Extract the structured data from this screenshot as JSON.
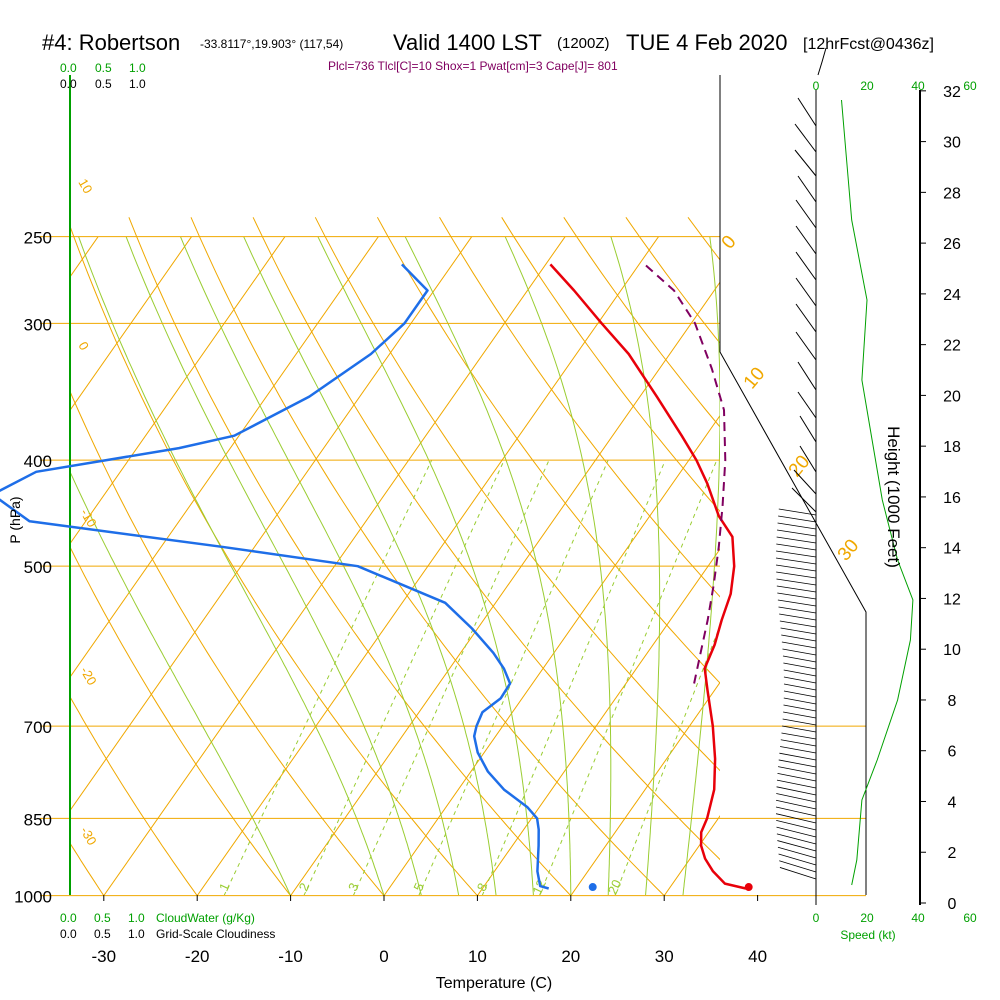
{
  "header": {
    "station": "#4: Robertson",
    "location": "-33.8117°,19.903° (117,54)",
    "valid": "Valid 1400 LST",
    "utc": "(1200Z)",
    "date": "TUE 4 Feb 2020",
    "forecast": "[12hrFcst@0436z]"
  },
  "indices": "Plcl=736 Tlcl[C]=10 Shox=1 Pwat[cm]=3 Cape[J]= 801",
  "colors": {
    "isobar": "#f0a800",
    "isotherm": "#f0a800",
    "dry_adiabat": "#f0a800",
    "moist_adiabat": "#9acd32",
    "mixing_ratio": "#9acd32",
    "temperature": "#e8000a",
    "dewpoint": "#1e6ee8",
    "parcel": "#800060",
    "cloud": "#00a000",
    "speed": "#00a000",
    "indices_text": "#800060"
  },
  "scales": {
    "cloud_top_green": [
      "0.0",
      "0.5",
      "1.0"
    ],
    "cloud_top_black": [
      "0.0",
      "0.5",
      "1.0"
    ],
    "cloud_bottom_green": [
      "0.0",
      "0.5",
      "1.0"
    ],
    "cloud_bottom_black": [
      "0.0",
      "0.5",
      "1.0"
    ],
    "cloudwater_label": "CloudWater (g/Kg)",
    "cloudiness_label": "Grid-Scale Cloudiness",
    "speed_ticks": [
      "0",
      "20",
      "40",
      "60"
    ],
    "speed_label": "Speed (kt)"
  },
  "adiabat_labels": {
    "dry_left": [
      "10",
      "0",
      "-10",
      "-20",
      "-30"
    ],
    "dry_right": [
      "0",
      "10",
      "20",
      "30"
    ],
    "mixing_ratio": [
      "1",
      "2",
      "3",
      "5",
      "8",
      "12",
      "20"
    ]
  },
  "chart_data": {
    "type": "skew-t",
    "xlabel": "Temperature (C)",
    "ylabel": "P (hPa)",
    "y2label": "Height (1000 Feet)",
    "pressure_ticks": [
      250,
      300,
      400,
      500,
      700,
      850,
      1000
    ],
    "temperature_ticks": [
      -30,
      -20,
      -10,
      0,
      10,
      20,
      30,
      40
    ],
    "height_ticks": [
      0,
      2,
      4,
      6,
      8,
      10,
      12,
      14,
      16,
      18,
      20,
      22,
      24,
      26,
      28,
      30,
      32
    ],
    "xlim": [
      -35,
      45
    ],
    "ylim": [
      1000,
      250
    ],
    "series": [
      {
        "key": "temperature",
        "points": [
          [
            985,
            38.2
          ],
          [
            975,
            35.6
          ],
          [
            950,
            33.4
          ],
          [
            925,
            31.6
          ],
          [
            900,
            30.2
          ],
          [
            875,
            29.2
          ],
          [
            850,
            28.8
          ],
          [
            800,
            27.4
          ],
          [
            750,
            25.2
          ],
          [
            700,
            22.5
          ],
          [
            650,
            19.3
          ],
          [
            620,
            17.3
          ],
          [
            590,
            16.6
          ],
          [
            560,
            15.5
          ],
          [
            530,
            14.5
          ],
          [
            500,
            12.8
          ],
          [
            470,
            10.4
          ],
          [
            450,
            7.4
          ],
          [
            420,
            3.7
          ],
          [
            400,
            0.8
          ],
          [
            380,
            -2.6
          ],
          [
            350,
            -8.2
          ],
          [
            320,
            -14.4
          ],
          [
            300,
            -19.6
          ],
          [
            280,
            -25.0
          ],
          [
            265,
            -29.5
          ]
        ]
      },
      {
        "key": "dewpoint",
        "points": [
          [
            985,
            17.1
          ],
          [
            980,
            16.0
          ],
          [
            950,
            14.6
          ],
          [
            900,
            12.8
          ],
          [
            870,
            11.6
          ],
          [
            850,
            10.6
          ],
          [
            830,
            8.7
          ],
          [
            800,
            4.9
          ],
          [
            770,
            1.8
          ],
          [
            740,
            -0.7
          ],
          [
            715,
            -2.3
          ],
          [
            700,
            -2.8
          ],
          [
            680,
            -3.2
          ],
          [
            660,
            -2.3
          ],
          [
            640,
            -2.4
          ],
          [
            620,
            -4.2
          ],
          [
            600,
            -6.5
          ],
          [
            570,
            -10.6
          ],
          [
            540,
            -15.4
          ],
          [
            500,
            -27.5
          ],
          [
            480,
            -43.5
          ],
          [
            455,
            -66.0
          ],
          [
            430,
            -72.0
          ],
          [
            410,
            -69.0
          ],
          [
            390,
            -55.5
          ],
          [
            380,
            -50.5
          ],
          [
            350,
            -45.4
          ],
          [
            320,
            -42.0
          ],
          [
            300,
            -40.7
          ],
          [
            280,
            -40.7
          ],
          [
            265,
            -45.4
          ]
        ]
      },
      {
        "key": "parcel",
        "points": [
          [
            640,
            17.3
          ],
          [
            600,
            15.7
          ],
          [
            560,
            14.0
          ],
          [
            520,
            12.0
          ],
          [
            480,
            9.7
          ],
          [
            440,
            7.0
          ],
          [
            400,
            3.9
          ],
          [
            360,
            0.0
          ],
          [
            330,
            -4.4
          ],
          [
            300,
            -9.6
          ],
          [
            280,
            -14.3
          ],
          [
            265,
            -19.4
          ]
        ]
      }
    ],
    "surface_markers": {
      "temperature": [
        982,
        38.4
      ],
      "dewpoint": [
        982,
        21.7
      ]
    }
  }
}
